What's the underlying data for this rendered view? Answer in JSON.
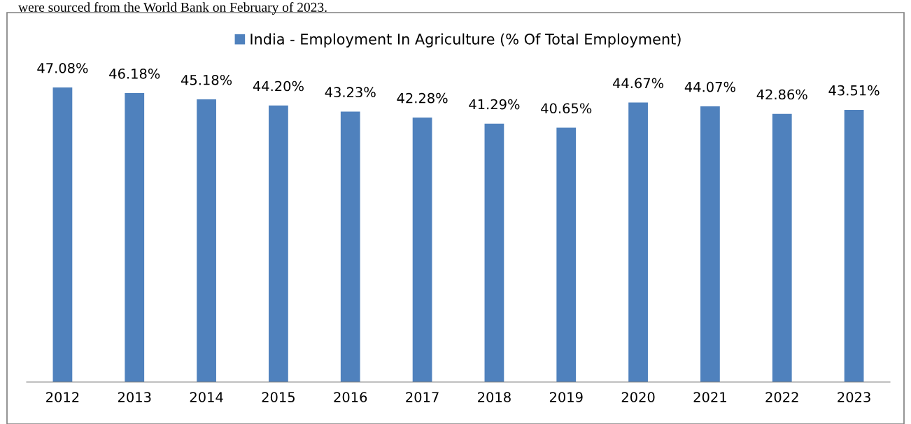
{
  "chart_data": {
    "type": "bar",
    "annotations": [
      "were sourced from the World Bank on February of 2023."
    ],
    "categories": [
      "2012",
      "2013",
      "2014",
      "2015",
      "2016",
      "2017",
      "2018",
      "2019",
      "2020",
      "2021",
      "2022",
      "2023"
    ],
    "series": [
      {
        "name": "India - Employment In Agriculture (% Of Total Employment)",
        "color": "#4f81bd",
        "values": [
          47.08,
          46.18,
          45.18,
          44.2,
          43.23,
          42.28,
          41.29,
          40.65,
          44.67,
          44.07,
          42.86,
          43.51
        ],
        "value_labels": [
          "47.08%",
          "46.18%",
          "45.18%",
          "44.20%",
          "43.23%",
          "42.28%",
          "41.29%",
          "40.65%",
          "44.67%",
          "44.07%",
          "42.86%",
          "43.51%"
        ]
      }
    ],
    "tick_labels": "x",
    "legend": "top",
    "grid": false
  }
}
